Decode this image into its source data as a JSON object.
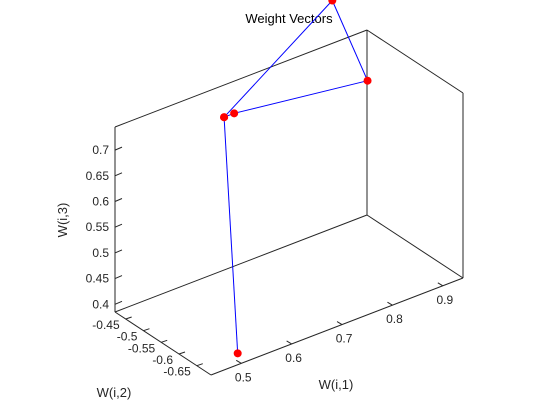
{
  "chart_data": {
    "type": "line",
    "title": "Weight Vectors",
    "xlabel": "W(i,1)",
    "ylabel": "W(i,2)",
    "zlabel": "W(i,3)",
    "x_ticks": [
      "0.5",
      "0.6",
      "0.7",
      "0.8",
      "0.9"
    ],
    "y_ticks": [
      "-0.45",
      "-0.5",
      "-0.55",
      "-0.6",
      "-0.65"
    ],
    "z_ticks": [
      "0.4",
      "0.45",
      "0.5",
      "0.55",
      "0.6",
      "0.65",
      "0.7"
    ],
    "xlim": [
      0.44,
      0.94
    ],
    "ylim": [
      -0.69,
      -0.42
    ],
    "zlim": [
      0.385,
      0.745
    ],
    "grid": false,
    "series": [
      {
        "line_color": "#0000ff",
        "marker_color": "#ff0000",
        "points": [
          {
            "x": 0.5,
            "y": -0.68,
            "z": 0.4
          },
          {
            "x": 0.6,
            "y": -0.5,
            "z": 0.74
          },
          {
            "x": 0.62,
            "y": -0.5,
            "z": 0.74
          },
          {
            "x": 0.8,
            "y": -0.62,
            "z": 0.79
          },
          {
            "x": 0.85,
            "y": -0.45,
            "z": 0.85
          },
          {
            "x": 0.6,
            "y": -0.5,
            "z": 0.74
          }
        ]
      }
    ]
  }
}
